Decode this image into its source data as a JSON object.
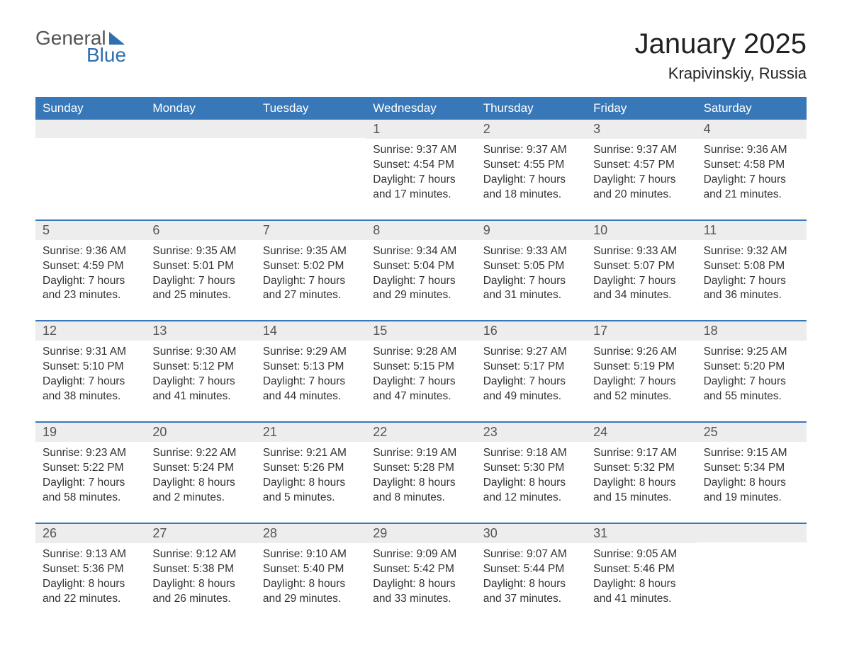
{
  "logo": {
    "top": "General",
    "bottom": "Blue"
  },
  "title": "January 2025",
  "location": "Krapivinskiy, Russia",
  "colors": {
    "header_bg": "#3878b8",
    "header_text": "#ffffff",
    "daynum_bg": "#ededed",
    "text": "#333333",
    "rule": "#3878b8",
    "page_bg": "#ffffff",
    "logo_blue": "#2f6fb0",
    "logo_gray": "#555555"
  },
  "typography": {
    "title_fontsize": 40,
    "location_fontsize": 22,
    "header_fontsize": 17,
    "daynum_fontsize": 18,
    "body_fontsize": 15.5
  },
  "layout": {
    "columns": 7,
    "rows": 5,
    "leading_blanks": 3,
    "trailing_blanks": 1
  },
  "day_labels": [
    "Sunday",
    "Monday",
    "Tuesday",
    "Wednesday",
    "Thursday",
    "Friday",
    "Saturday"
  ],
  "days": [
    {
      "n": "1",
      "sunrise": "Sunrise: 9:37 AM",
      "sunset": "Sunset: 4:54 PM",
      "d1": "Daylight: 7 hours",
      "d2": "and 17 minutes."
    },
    {
      "n": "2",
      "sunrise": "Sunrise: 9:37 AM",
      "sunset": "Sunset: 4:55 PM",
      "d1": "Daylight: 7 hours",
      "d2": "and 18 minutes."
    },
    {
      "n": "3",
      "sunrise": "Sunrise: 9:37 AM",
      "sunset": "Sunset: 4:57 PM",
      "d1": "Daylight: 7 hours",
      "d2": "and 20 minutes."
    },
    {
      "n": "4",
      "sunrise": "Sunrise: 9:36 AM",
      "sunset": "Sunset: 4:58 PM",
      "d1": "Daylight: 7 hours",
      "d2": "and 21 minutes."
    },
    {
      "n": "5",
      "sunrise": "Sunrise: 9:36 AM",
      "sunset": "Sunset: 4:59 PM",
      "d1": "Daylight: 7 hours",
      "d2": "and 23 minutes."
    },
    {
      "n": "6",
      "sunrise": "Sunrise: 9:35 AM",
      "sunset": "Sunset: 5:01 PM",
      "d1": "Daylight: 7 hours",
      "d2": "and 25 minutes."
    },
    {
      "n": "7",
      "sunrise": "Sunrise: 9:35 AM",
      "sunset": "Sunset: 5:02 PM",
      "d1": "Daylight: 7 hours",
      "d2": "and 27 minutes."
    },
    {
      "n": "8",
      "sunrise": "Sunrise: 9:34 AM",
      "sunset": "Sunset: 5:04 PM",
      "d1": "Daylight: 7 hours",
      "d2": "and 29 minutes."
    },
    {
      "n": "9",
      "sunrise": "Sunrise: 9:33 AM",
      "sunset": "Sunset: 5:05 PM",
      "d1": "Daylight: 7 hours",
      "d2": "and 31 minutes."
    },
    {
      "n": "10",
      "sunrise": "Sunrise: 9:33 AM",
      "sunset": "Sunset: 5:07 PM",
      "d1": "Daylight: 7 hours",
      "d2": "and 34 minutes."
    },
    {
      "n": "11",
      "sunrise": "Sunrise: 9:32 AM",
      "sunset": "Sunset: 5:08 PM",
      "d1": "Daylight: 7 hours",
      "d2": "and 36 minutes."
    },
    {
      "n": "12",
      "sunrise": "Sunrise: 9:31 AM",
      "sunset": "Sunset: 5:10 PM",
      "d1": "Daylight: 7 hours",
      "d2": "and 38 minutes."
    },
    {
      "n": "13",
      "sunrise": "Sunrise: 9:30 AM",
      "sunset": "Sunset: 5:12 PM",
      "d1": "Daylight: 7 hours",
      "d2": "and 41 minutes."
    },
    {
      "n": "14",
      "sunrise": "Sunrise: 9:29 AM",
      "sunset": "Sunset: 5:13 PM",
      "d1": "Daylight: 7 hours",
      "d2": "and 44 minutes."
    },
    {
      "n": "15",
      "sunrise": "Sunrise: 9:28 AM",
      "sunset": "Sunset: 5:15 PM",
      "d1": "Daylight: 7 hours",
      "d2": "and 47 minutes."
    },
    {
      "n": "16",
      "sunrise": "Sunrise: 9:27 AM",
      "sunset": "Sunset: 5:17 PM",
      "d1": "Daylight: 7 hours",
      "d2": "and 49 minutes."
    },
    {
      "n": "17",
      "sunrise": "Sunrise: 9:26 AM",
      "sunset": "Sunset: 5:19 PM",
      "d1": "Daylight: 7 hours",
      "d2": "and 52 minutes."
    },
    {
      "n": "18",
      "sunrise": "Sunrise: 9:25 AM",
      "sunset": "Sunset: 5:20 PM",
      "d1": "Daylight: 7 hours",
      "d2": "and 55 minutes."
    },
    {
      "n": "19",
      "sunrise": "Sunrise: 9:23 AM",
      "sunset": "Sunset: 5:22 PM",
      "d1": "Daylight: 7 hours",
      "d2": "and 58 minutes."
    },
    {
      "n": "20",
      "sunrise": "Sunrise: 9:22 AM",
      "sunset": "Sunset: 5:24 PM",
      "d1": "Daylight: 8 hours",
      "d2": "and 2 minutes."
    },
    {
      "n": "21",
      "sunrise": "Sunrise: 9:21 AM",
      "sunset": "Sunset: 5:26 PM",
      "d1": "Daylight: 8 hours",
      "d2": "and 5 minutes."
    },
    {
      "n": "22",
      "sunrise": "Sunrise: 9:19 AM",
      "sunset": "Sunset: 5:28 PM",
      "d1": "Daylight: 8 hours",
      "d2": "and 8 minutes."
    },
    {
      "n": "23",
      "sunrise": "Sunrise: 9:18 AM",
      "sunset": "Sunset: 5:30 PM",
      "d1": "Daylight: 8 hours",
      "d2": "and 12 minutes."
    },
    {
      "n": "24",
      "sunrise": "Sunrise: 9:17 AM",
      "sunset": "Sunset: 5:32 PM",
      "d1": "Daylight: 8 hours",
      "d2": "and 15 minutes."
    },
    {
      "n": "25",
      "sunrise": "Sunrise: 9:15 AM",
      "sunset": "Sunset: 5:34 PM",
      "d1": "Daylight: 8 hours",
      "d2": "and 19 minutes."
    },
    {
      "n": "26",
      "sunrise": "Sunrise: 9:13 AM",
      "sunset": "Sunset: 5:36 PM",
      "d1": "Daylight: 8 hours",
      "d2": "and 22 minutes."
    },
    {
      "n": "27",
      "sunrise": "Sunrise: 9:12 AM",
      "sunset": "Sunset: 5:38 PM",
      "d1": "Daylight: 8 hours",
      "d2": "and 26 minutes."
    },
    {
      "n": "28",
      "sunrise": "Sunrise: 9:10 AM",
      "sunset": "Sunset: 5:40 PM",
      "d1": "Daylight: 8 hours",
      "d2": "and 29 minutes."
    },
    {
      "n": "29",
      "sunrise": "Sunrise: 9:09 AM",
      "sunset": "Sunset: 5:42 PM",
      "d1": "Daylight: 8 hours",
      "d2": "and 33 minutes."
    },
    {
      "n": "30",
      "sunrise": "Sunrise: 9:07 AM",
      "sunset": "Sunset: 5:44 PM",
      "d1": "Daylight: 8 hours",
      "d2": "and 37 minutes."
    },
    {
      "n": "31",
      "sunrise": "Sunrise: 9:05 AM",
      "sunset": "Sunset: 5:46 PM",
      "d1": "Daylight: 8 hours",
      "d2": "and 41 minutes."
    }
  ]
}
